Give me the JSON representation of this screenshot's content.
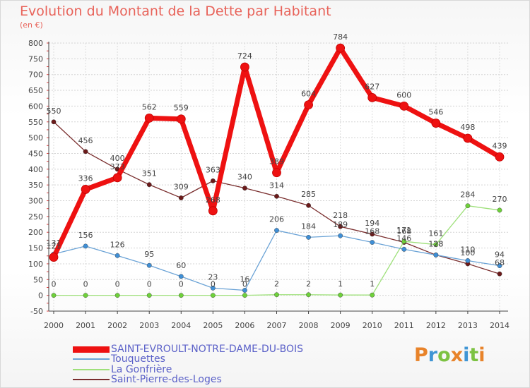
{
  "chart_data": {
    "type": "line",
    "title": "Evolution du Montant de la Dette par Habitant",
    "ylabel": "(en €)",
    "xlabel": "",
    "categories": [
      "2000",
      "2001",
      "2002",
      "2003",
      "2004",
      "2005",
      "2006",
      "2007",
      "2008",
      "2009",
      "2010",
      "2011",
      "2012",
      "2013",
      "2014"
    ],
    "ylim": [
      -50,
      800
    ],
    "yticks": [
      -50,
      0,
      50,
      100,
      150,
      200,
      250,
      300,
      350,
      400,
      450,
      500,
      550,
      600,
      650,
      700,
      750,
      800
    ],
    "grid": true,
    "legend_position": "bottom-left",
    "series": [
      {
        "name": "SAINT-EVROULT-NOTRE-DAME-DU-BOIS",
        "color": "#ee1111",
        "marker": "#ee1111",
        "width": 7,
        "values": [
          121,
          336,
          373,
          562,
          559,
          268,
          724,
          389,
          604,
          784,
          627,
          600,
          546,
          498,
          439
        ]
      },
      {
        "name": "Touquettes",
        "color": "#6ba3d6",
        "marker": "#3f8fd6",
        "width": 1.3,
        "values": [
          131,
          156,
          126,
          95,
          60,
          23,
          16,
          206,
          184,
          189,
          168,
          146,
          128,
          110,
          94
        ]
      },
      {
        "name": "La Gonfrière",
        "color": "#9ee07a",
        "marker": "#6ed13a",
        "width": 1.3,
        "values": [
          0,
          0,
          0,
          0,
          0,
          0,
          0,
          2,
          2,
          1,
          1,
          171,
          161,
          284,
          270
        ]
      },
      {
        "name": "Saint-Pierre-des-Loges",
        "color": "#7a2e2e",
        "marker": "#6b1a1a",
        "width": 1.3,
        "values": [
          550,
          456,
          400,
          351,
          309,
          363,
          340,
          314,
          285,
          218,
          194,
          168,
          128,
          100,
          68
        ]
      }
    ]
  },
  "brand": {
    "letters": [
      "P",
      "r",
      "o",
      "x",
      "i",
      "t",
      "i"
    ],
    "colors": [
      "#e8832a",
      "#3f95d4",
      "#7cc242",
      "#e8832a",
      "#3f95d4",
      "#7cc242",
      "#e8832a"
    ]
  }
}
